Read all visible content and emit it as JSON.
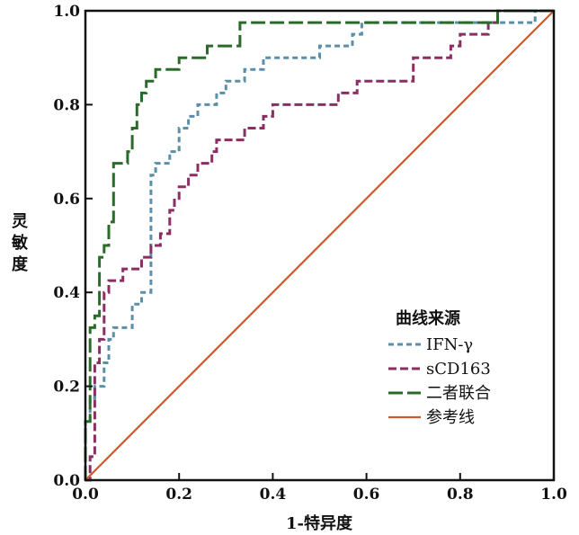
{
  "chart_data": {
    "type": "line",
    "title": "",
    "xlabel": "1-特异度",
    "ylabel": "灵敏度",
    "xlim": [
      0,
      1
    ],
    "ylim": [
      0,
      1
    ],
    "x_ticks": [
      "0.0",
      "0.2",
      "0.4",
      "0.6",
      "0.8",
      "1.0"
    ],
    "y_ticks": [
      "0.0",
      "0.2",
      "0.4",
      "0.6",
      "0.8",
      "1.0"
    ],
    "grid": false,
    "legend_position": "bottom-right",
    "legend_title": "曲线来源",
    "series": [
      {
        "name": "IFN-γ",
        "color": "#5b8fa8",
        "dash": "short",
        "points": [
          [
            0,
            0
          ],
          [
            0,
            0.125
          ],
          [
            0.01,
            0.125
          ],
          [
            0.01,
            0.175
          ],
          [
            0.02,
            0.175
          ],
          [
            0.02,
            0.2
          ],
          [
            0.04,
            0.2
          ],
          [
            0.04,
            0.25
          ],
          [
            0.05,
            0.25
          ],
          [
            0.05,
            0.3
          ],
          [
            0.06,
            0.3
          ],
          [
            0.06,
            0.325
          ],
          [
            0.1,
            0.325
          ],
          [
            0.1,
            0.375
          ],
          [
            0.12,
            0.375
          ],
          [
            0.12,
            0.4
          ],
          [
            0.14,
            0.4
          ],
          [
            0.14,
            0.5
          ],
          [
            0.14,
            0.525
          ],
          [
            0.14,
            0.6
          ],
          [
            0.14,
            0.65
          ],
          [
            0.15,
            0.65
          ],
          [
            0.15,
            0.675
          ],
          [
            0.18,
            0.675
          ],
          [
            0.18,
            0.7
          ],
          [
            0.2,
            0.7
          ],
          [
            0.2,
            0.75
          ],
          [
            0.22,
            0.75
          ],
          [
            0.22,
            0.775
          ],
          [
            0.24,
            0.775
          ],
          [
            0.24,
            0.8
          ],
          [
            0.28,
            0.8
          ],
          [
            0.28,
            0.825
          ],
          [
            0.3,
            0.825
          ],
          [
            0.3,
            0.85
          ],
          [
            0.34,
            0.85
          ],
          [
            0.34,
            0.875
          ],
          [
            0.38,
            0.875
          ],
          [
            0.38,
            0.9
          ],
          [
            0.44,
            0.9
          ],
          [
            0.44,
            0.9
          ],
          [
            0.5,
            0.9
          ],
          [
            0.5,
            0.925
          ],
          [
            0.57,
            0.925
          ],
          [
            0.57,
            0.95
          ],
          [
            0.59,
            0.95
          ],
          [
            0.59,
            0.975
          ],
          [
            0.96,
            0.975
          ],
          [
            0.96,
            1.0
          ],
          [
            1.0,
            1.0
          ]
        ]
      },
      {
        "name": "sCD163",
        "color": "#8b2f62",
        "dash": "medium",
        "points": [
          [
            0,
            0
          ],
          [
            0.01,
            0
          ],
          [
            0.01,
            0.05
          ],
          [
            0.02,
            0.05
          ],
          [
            0.02,
            0.25
          ],
          [
            0.03,
            0.25
          ],
          [
            0.03,
            0.3
          ],
          [
            0.04,
            0.3
          ],
          [
            0.04,
            0.4
          ],
          [
            0.05,
            0.4
          ],
          [
            0.05,
            0.425
          ],
          [
            0.08,
            0.425
          ],
          [
            0.08,
            0.45
          ],
          [
            0.12,
            0.45
          ],
          [
            0.12,
            0.475
          ],
          [
            0.14,
            0.475
          ],
          [
            0.14,
            0.5
          ],
          [
            0.16,
            0.5
          ],
          [
            0.16,
            0.525
          ],
          [
            0.18,
            0.525
          ],
          [
            0.18,
            0.575
          ],
          [
            0.19,
            0.575
          ],
          [
            0.19,
            0.6
          ],
          [
            0.2,
            0.6
          ],
          [
            0.2,
            0.625
          ],
          [
            0.22,
            0.625
          ],
          [
            0.22,
            0.65
          ],
          [
            0.24,
            0.65
          ],
          [
            0.24,
            0.675
          ],
          [
            0.27,
            0.675
          ],
          [
            0.27,
            0.7
          ],
          [
            0.28,
            0.7
          ],
          [
            0.28,
            0.725
          ],
          [
            0.34,
            0.725
          ],
          [
            0.34,
            0.75
          ],
          [
            0.38,
            0.75
          ],
          [
            0.38,
            0.775
          ],
          [
            0.4,
            0.775
          ],
          [
            0.4,
            0.8
          ],
          [
            0.54,
            0.8
          ],
          [
            0.54,
            0.825
          ],
          [
            0.58,
            0.825
          ],
          [
            0.58,
            0.85
          ],
          [
            0.7,
            0.85
          ],
          [
            0.7,
            0.9
          ],
          [
            0.78,
            0.9
          ],
          [
            0.78,
            0.925
          ],
          [
            0.8,
            0.925
          ],
          [
            0.8,
            0.95
          ],
          [
            0.86,
            0.95
          ],
          [
            0.86,
            0.975
          ],
          [
            0.88,
            0.975
          ],
          [
            0.88,
            1.0
          ],
          [
            1.0,
            1.0
          ]
        ]
      },
      {
        "name": "二者联合",
        "color": "#2a6b2a",
        "dash": "long",
        "points": [
          [
            0,
            0
          ],
          [
            0,
            0.125
          ],
          [
            0.01,
            0.125
          ],
          [
            0.01,
            0.325
          ],
          [
            0.02,
            0.325
          ],
          [
            0.02,
            0.35
          ],
          [
            0.03,
            0.35
          ],
          [
            0.03,
            0.475
          ],
          [
            0.04,
            0.475
          ],
          [
            0.04,
            0.5
          ],
          [
            0.05,
            0.5
          ],
          [
            0.05,
            0.55
          ],
          [
            0.06,
            0.55
          ],
          [
            0.06,
            0.675
          ],
          [
            0.09,
            0.675
          ],
          [
            0.09,
            0.7
          ],
          [
            0.1,
            0.7
          ],
          [
            0.1,
            0.75
          ],
          [
            0.11,
            0.75
          ],
          [
            0.11,
            0.8
          ],
          [
            0.12,
            0.8
          ],
          [
            0.12,
            0.825
          ],
          [
            0.13,
            0.825
          ],
          [
            0.13,
            0.85
          ],
          [
            0.15,
            0.85
          ],
          [
            0.15,
            0.875
          ],
          [
            0.17,
            0.875
          ],
          [
            0.17,
            0.875
          ],
          [
            0.2,
            0.875
          ],
          [
            0.2,
            0.9
          ],
          [
            0.26,
            0.9
          ],
          [
            0.26,
            0.925
          ],
          [
            0.33,
            0.925
          ],
          [
            0.33,
            0.975
          ],
          [
            0.88,
            0.975
          ],
          [
            0.88,
            1.0
          ],
          [
            1.0,
            1.0
          ]
        ]
      },
      {
        "name": "参考线",
        "color": "#cc5a2a",
        "dash": "solid",
        "points": [
          [
            0,
            0
          ],
          [
            1,
            1
          ]
        ]
      }
    ]
  }
}
